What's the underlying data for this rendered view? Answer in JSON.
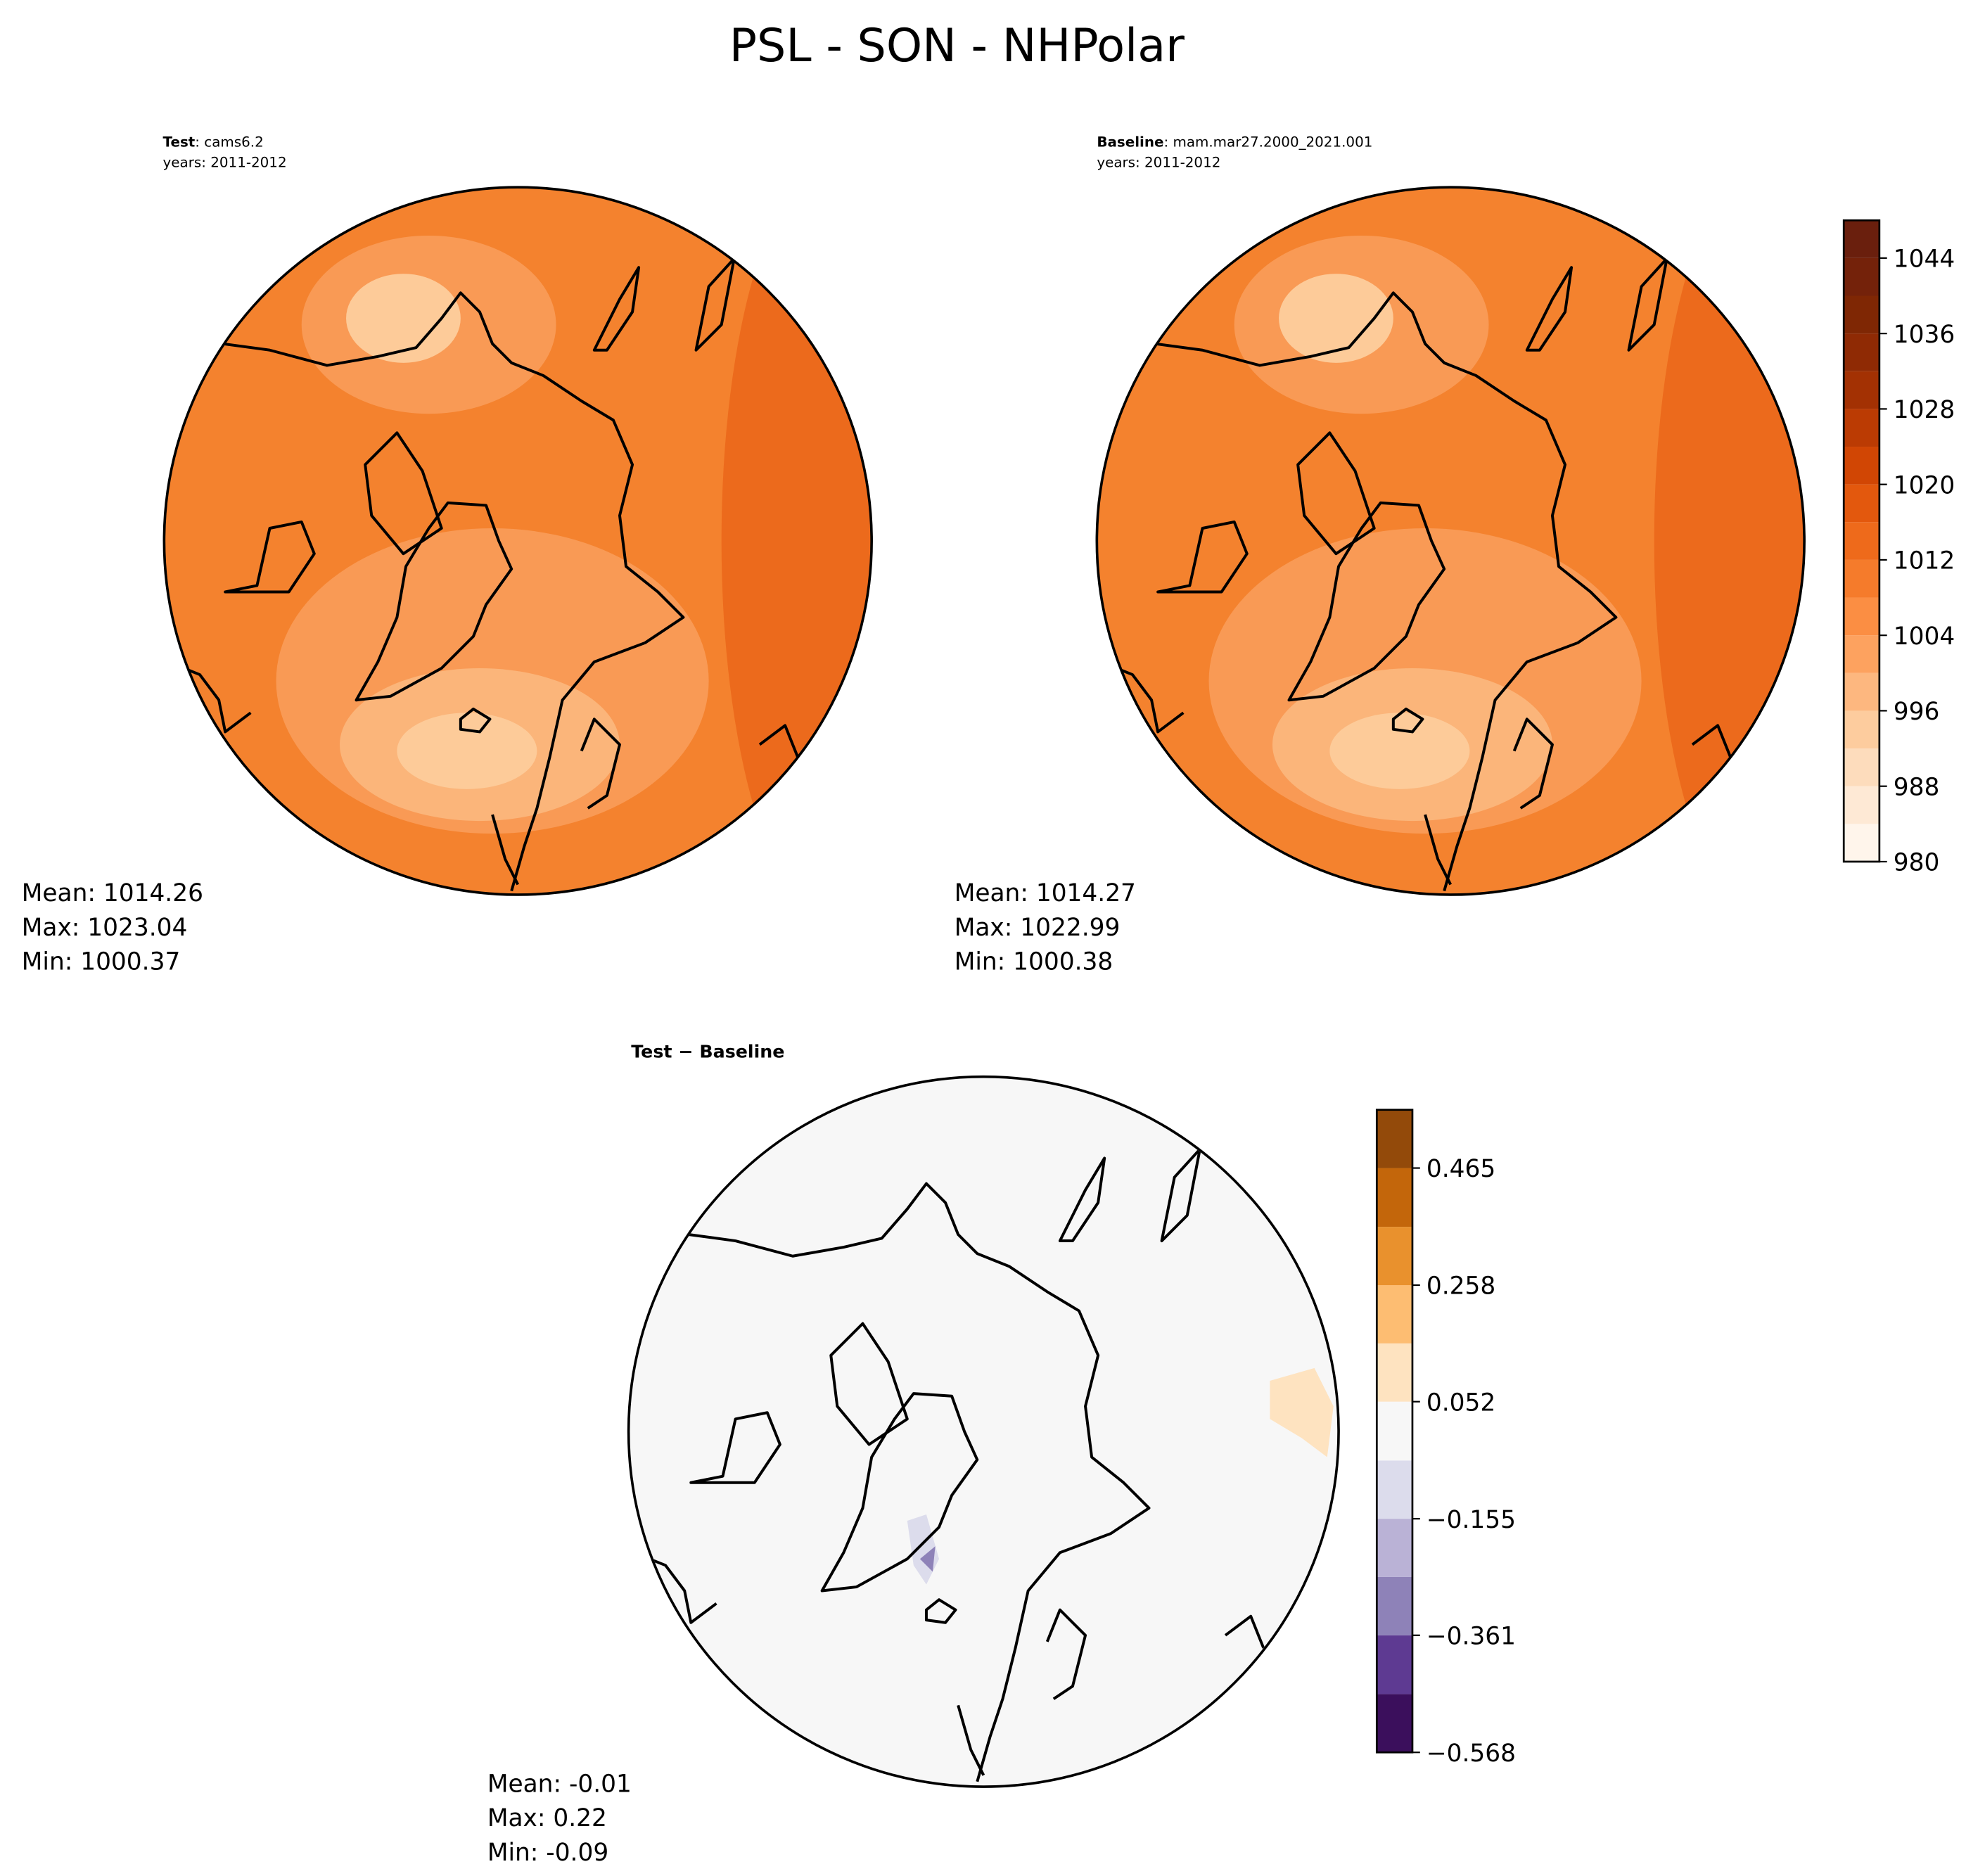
{
  "title": "PSL - SON - NHPolar",
  "panels": [
    {
      "label": "Test",
      "case": ": cams6.2",
      "years": "years: 2011-2012",
      "stats": [
        "Mean: 1014.26",
        "Max: 1023.04",
        "Min: 1000.37"
      ]
    },
    {
      "label": "Baseline",
      "case": ": mam.mar27.2000_2021.001",
      "years": "years: 2011-2012",
      "stats": [
        "Mean: 1014.27",
        "Max: 1022.99",
        "Min: 1000.38"
      ]
    },
    {
      "label": "Test − Baseline",
      "stats": [
        "Mean: -0.01",
        "Max:  0.22",
        "Min: -0.09"
      ]
    }
  ],
  "colorbars": [
    {
      "levels": [
        980,
        984,
        988,
        992,
        996,
        1000,
        1004,
        1008,
        1012,
        1016,
        1020,
        1024,
        1028,
        1032,
        1036,
        1040,
        1044,
        1048
      ],
      "colors": [
        "#fff5eb",
        "#fee9d5",
        "#fddcbc",
        "#fdcc9e",
        "#fdb77f",
        "#fda25f",
        "#fb8e43",
        "#f57b2b",
        "#ee6a1b",
        "#e3580d",
        "#d14604",
        "#bb3b03",
        "#a33103",
        "#8f2a04",
        "#7f2704",
        "#74220a",
        "#6a1f0d"
      ],
      "ticks": [
        980,
        988,
        996,
        1004,
        1012,
        1020,
        1028,
        1036,
        1044
      ]
    },
    {
      "levels": [
        -0.568,
        -0.465,
        -0.361,
        -0.258,
        -0.155,
        -0.052,
        0.052,
        0.155,
        0.258,
        0.361,
        0.465,
        0.568
      ],
      "colors": [
        "#3b0f5c",
        "#5e3a92",
        "#8e82b8",
        "#bab2d6",
        "#dcdcec",
        "#f7f7f7",
        "#fee3c0",
        "#fdbd72",
        "#e9912d",
        "#c3660b",
        "#934a0a"
      ],
      "ticks": [
        {
          "value": -0.568,
          "label": "−0.568"
        },
        {
          "value": -0.361,
          "label": "−0.361"
        },
        {
          "value": -0.155,
          "label": "−0.155"
        },
        0.052,
        0.258,
        0.465
      ]
    }
  ]
}
